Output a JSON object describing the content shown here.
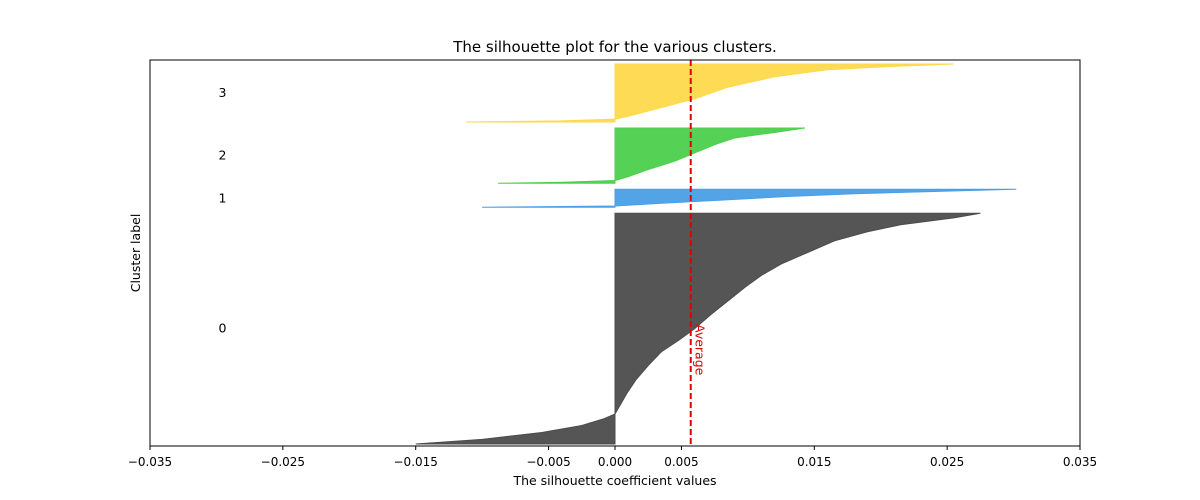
{
  "chart_data": {
    "type": "area",
    "title": "The silhouette plot for the various clusters.",
    "xlabel": "The silhouette coefficient values",
    "ylabel": "Cluster label",
    "xlim": [
      -0.035,
      0.035
    ],
    "xticks": [
      -0.035,
      -0.025,
      -0.015,
      -0.005,
      0.0,
      0.005,
      0.015,
      0.025,
      0.035
    ],
    "xtick_labels": [
      "−0.035",
      "−0.025",
      "−0.015",
      "−0.005",
      "0.000",
      "0.005",
      "0.015",
      "0.025",
      "0.035"
    ],
    "grid": false,
    "average_line": {
      "value": 0.0057,
      "label": "Average",
      "color": "#e00000"
    },
    "clusters": [
      {
        "label": "0",
        "color": "#4c4c4c",
        "size": 167,
        "profile": [
          [
            0.0,
            0.0275
          ],
          [
            0.02,
            0.0255
          ],
          [
            0.05,
            0.0215
          ],
          [
            0.08,
            0.019
          ],
          [
            0.12,
            0.0165
          ],
          [
            0.17,
            0.0145
          ],
          [
            0.22,
            0.0125
          ],
          [
            0.27,
            0.011
          ],
          [
            0.32,
            0.0098
          ],
          [
            0.38,
            0.0085
          ],
          [
            0.44,
            0.0072
          ],
          [
            0.5,
            0.006
          ],
          [
            0.55,
            0.0048
          ],
          [
            0.6,
            0.0035
          ],
          [
            0.66,
            0.0025
          ],
          [
            0.72,
            0.0016
          ],
          [
            0.78,
            0.0009
          ],
          [
            0.84,
            0.0003
          ],
          [
            0.87,
            0.0
          ],
          [
            0.89,
            -0.0008
          ],
          [
            0.92,
            -0.0025
          ],
          [
            0.95,
            -0.0055
          ],
          [
            0.98,
            -0.01
          ],
          [
            1.0,
            -0.015
          ]
        ]
      },
      {
        "label": "1",
        "color": "#4a9fe6",
        "size": 13,
        "profile": [
          [
            0.0,
            0.0302
          ],
          [
            0.1,
            0.025
          ],
          [
            0.25,
            0.018
          ],
          [
            0.4,
            0.013
          ],
          [
            0.6,
            0.008
          ],
          [
            0.8,
            0.003
          ],
          [
            0.93,
            0.0
          ],
          [
            0.96,
            -0.004
          ],
          [
            1.0,
            -0.01
          ]
        ]
      },
      {
        "label": "2",
        "color": "#4cd04c",
        "size": 40,
        "profile": [
          [
            0.0,
            0.0143
          ],
          [
            0.08,
            0.012
          ],
          [
            0.18,
            0.009
          ],
          [
            0.3,
            0.0075
          ],
          [
            0.45,
            0.006
          ],
          [
            0.6,
            0.0045
          ],
          [
            0.75,
            0.0025
          ],
          [
            0.88,
            0.001
          ],
          [
            0.95,
            0.0
          ],
          [
            0.98,
            -0.004
          ],
          [
            1.0,
            -0.0088
          ]
        ]
      },
      {
        "label": "3",
        "color": "#fed94c",
        "size": 42,
        "profile": [
          [
            0.0,
            0.0255
          ],
          [
            0.04,
            0.021
          ],
          [
            0.1,
            0.016
          ],
          [
            0.22,
            0.012
          ],
          [
            0.4,
            0.0085
          ],
          [
            0.6,
            0.006
          ],
          [
            0.78,
            0.003
          ],
          [
            0.9,
            0.001
          ],
          [
            0.95,
            0.0
          ],
          [
            0.98,
            -0.004
          ],
          [
            1.0,
            -0.0112
          ]
        ]
      }
    ]
  }
}
